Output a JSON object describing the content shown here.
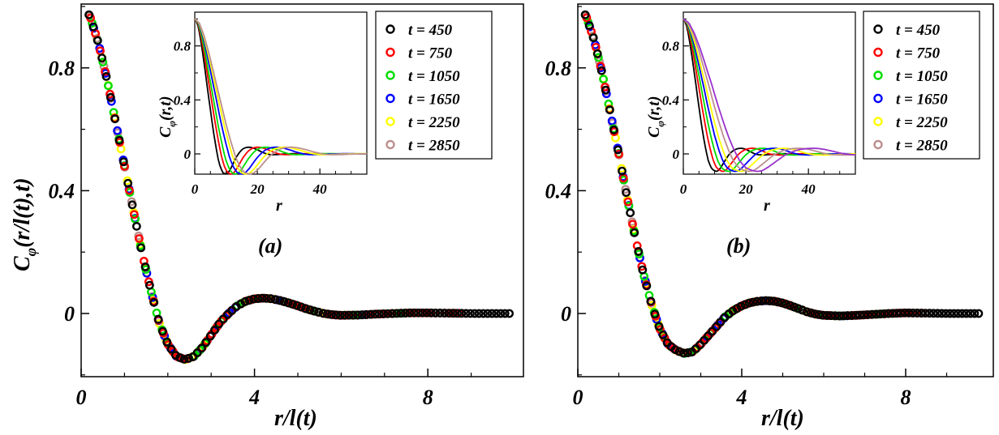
{
  "chart_data": [
    {
      "type": "scatter",
      "panel": "(a)",
      "title": "",
      "xlabel": "r/l(t)",
      "ylabel": "C_φ(r/l(t),t)",
      "ylabel_main": "C",
      "ylabel_sub": "φ",
      "ylabel_rest": "(r/l(t),t)",
      "xlim": [
        0,
        10
      ],
      "ylim": [
        -0.2,
        1.0
      ],
      "xticks": [
        0,
        4,
        8
      ],
      "xtick_labels": [
        "0",
        "4",
        "8"
      ],
      "yticks": [
        0,
        0.4,
        0.8
      ],
      "ytick_labels": [
        "0",
        "0.4",
        "0.8"
      ],
      "legend": [
        "t = 450",
        "t = 750",
        "t = 1050",
        "t = 1650",
        "t = 2250",
        "t = 2850"
      ],
      "legend_prefix": "t = ",
      "legend_values": [
        "450",
        "750",
        "1050",
        "1650",
        "2250",
        "2850"
      ],
      "series_colors": [
        "#000000",
        "#ff0000",
        "#00dd00",
        "#0000ff",
        "#ffff00",
        "#bc8f8f"
      ],
      "scaling_curve": {
        "x": [
          0,
          0.2,
          0.4,
          0.6,
          0.8,
          1.0,
          1.2,
          1.4,
          1.6,
          1.8,
          2.0,
          2.2,
          2.4,
          2.6,
          2.8,
          3.0,
          3.2,
          3.4,
          3.6,
          3.8,
          4.0,
          4.2,
          4.4,
          4.6,
          4.8,
          5.0,
          5.2,
          5.4,
          5.6,
          5.8,
          6.0,
          6.4,
          6.8,
          7.2,
          7.6,
          8.0,
          9.0,
          10.0
        ],
        "y": [
          1.0,
          0.97,
          0.88,
          0.76,
          0.62,
          0.48,
          0.34,
          0.2,
          0.08,
          -0.03,
          -0.1,
          -0.14,
          -0.15,
          -0.14,
          -0.11,
          -0.07,
          -0.03,
          0.0,
          0.025,
          0.04,
          0.048,
          0.05,
          0.048,
          0.042,
          0.034,
          0.025,
          0.015,
          0.007,
          0.0,
          -0.004,
          -0.006,
          -0.005,
          -0.002,
          0.0,
          0.002,
          0.002,
          0.0,
          0.0
        ]
      },
      "series_xmax": [
        9.9,
        8.8,
        7.7,
        6.7,
        6.1,
        5.9
      ],
      "inset": {
        "xlabel": "r",
        "ylabel": "C_φ(r,t)",
        "ylabel_main": "C",
        "ylabel_sub": "φ",
        "ylabel_rest": "(r,t)",
        "xlim": [
          0,
          55
        ],
        "ylim": [
          -0.15,
          1.05
        ],
        "xticks": [
          0,
          20,
          40
        ],
        "xtick_labels": [
          "0",
          "20",
          "40"
        ],
        "yticks": [
          0,
          0.4,
          0.8
        ],
        "ytick_labels": [
          "0",
          "0.4",
          "0.8"
        ],
        "length_scales": [
          4.1,
          4.8,
          5.4,
          6.2,
          6.8,
          7.3
        ]
      }
    },
    {
      "type": "scatter",
      "panel": "(b)",
      "title": "",
      "xlabel": "r/l(t)",
      "ylabel": "",
      "xlim": [
        0,
        10
      ],
      "ylim": [
        -0.2,
        1.0
      ],
      "xticks": [
        0,
        4,
        8
      ],
      "xtick_labels": [
        "0",
        "4",
        "8"
      ],
      "yticks": [
        0,
        0.4,
        0.8
      ],
      "ytick_labels": [
        "0",
        "0.4",
        "0.8"
      ],
      "legend": [
        "t = 450",
        "t = 750",
        "t = 1050",
        "t = 1650",
        "t = 2250",
        "t = 2850"
      ],
      "legend_prefix": "t = ",
      "legend_values": [
        "450",
        "750",
        "1050",
        "1650",
        "2250",
        "2850"
      ],
      "series_colors": [
        "#000000",
        "#ff0000",
        "#00dd00",
        "#0000ff",
        "#ffff00",
        "#bc8f8f"
      ],
      "scaling_curve": {
        "x": [
          0,
          0.2,
          0.4,
          0.6,
          0.8,
          1.0,
          1.2,
          1.4,
          1.6,
          1.8,
          2.0,
          2.2,
          2.4,
          2.6,
          2.8,
          3.0,
          3.2,
          3.4,
          3.6,
          3.8,
          4.0,
          4.2,
          4.4,
          4.6,
          4.8,
          5.0,
          5.2,
          5.4,
          5.6,
          5.8,
          6.0,
          6.4,
          6.8,
          7.2,
          7.6,
          8.0,
          9.0,
          10.0
        ],
        "y": [
          1.0,
          0.97,
          0.89,
          0.78,
          0.65,
          0.52,
          0.38,
          0.25,
          0.13,
          0.03,
          -0.05,
          -0.1,
          -0.12,
          -0.13,
          -0.125,
          -0.1,
          -0.07,
          -0.04,
          -0.01,
          0.01,
          0.025,
          0.035,
          0.04,
          0.042,
          0.04,
          0.034,
          0.025,
          0.015,
          0.005,
          -0.002,
          -0.006,
          -0.008,
          -0.006,
          -0.003,
          0.0,
          0.002,
          0.0,
          0.0
        ]
      },
      "series_xmax": [
        9.8,
        8.5,
        7.8,
        6.9,
        6.3,
        5.8
      ],
      "inset": {
        "xlabel": "r",
        "ylabel": "C_φ(r,t)",
        "ylabel_main": "C",
        "ylabel_sub": "φ",
        "ylabel_rest": "(r,t)",
        "xlim": [
          0,
          55
        ],
        "ylim": [
          -0.15,
          1.05
        ],
        "xticks": [
          0,
          20,
          40
        ],
        "xtick_labels": [
          "0",
          "20",
          "40"
        ],
        "yticks": [
          0,
          0.4,
          0.8
        ],
        "ytick_labels": [
          "0",
          "0.4",
          "0.8"
        ],
        "length_scales": [
          4.0,
          4.8,
          5.5,
          6.3,
          7.0,
          8.0
        ],
        "extra_curve_color": "#9932cc",
        "extra_length_scale": 9.0
      }
    }
  ]
}
